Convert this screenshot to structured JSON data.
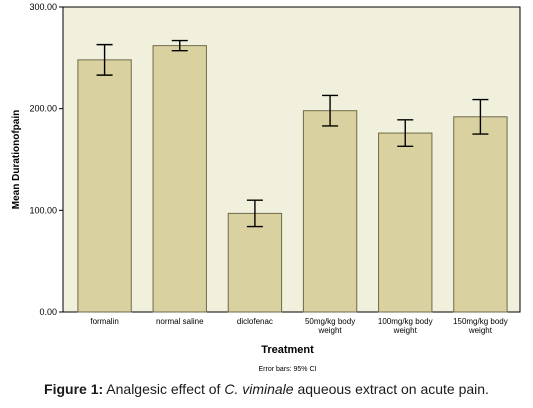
{
  "chart_data": {
    "type": "bar",
    "categories": [
      [
        "formalin"
      ],
      [
        "normal saline"
      ],
      [
        "diclofenac"
      ],
      [
        "50mg/kg body",
        "weight"
      ],
      [
        "100mg/kg body",
        "weight"
      ],
      [
        "150mg/kg body",
        "weight"
      ]
    ],
    "values": [
      248,
      262,
      97,
      198,
      176,
      192
    ],
    "error_low": [
      233,
      257,
      84,
      183,
      163,
      175
    ],
    "error_high": [
      263,
      267,
      110,
      213,
      189,
      209
    ],
    "xlabel": "Treatment",
    "ylabel": "Mean Durationofpain",
    "ylim": [
      0,
      300
    ],
    "yticks": [
      "0.00",
      "100.00",
      "200.00",
      "300.00"
    ],
    "ytick_values": [
      0,
      100,
      200,
      300
    ],
    "error_note": "Error bars: 95% CI",
    "grid": false,
    "colors": {
      "plot_bg": "#f0f0dc",
      "bar_fill": "#d9d2a0",
      "bar_stroke": "#6e6a4a",
      "error_bar": "#000000"
    }
  },
  "caption": {
    "label": "Figure 1:",
    "text_before": " Analgesic effect of ",
    "species": "C. viminale",
    "text_after": " aqueous extract on acute pain."
  }
}
